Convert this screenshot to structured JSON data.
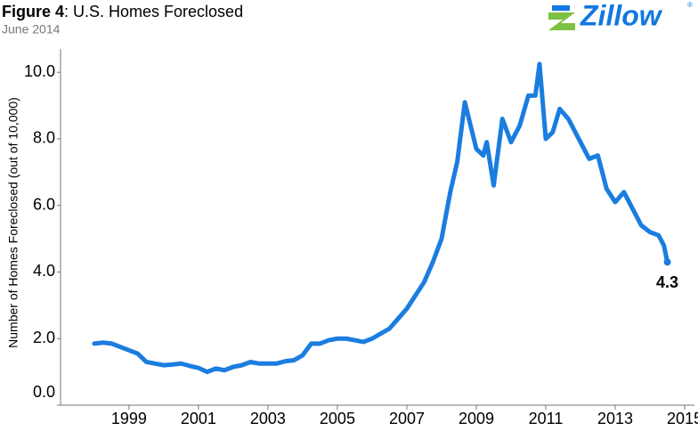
{
  "chart_data": {
    "type": "line",
    "title_bold": "Figure 4",
    "title": ": U.S. Homes Foreclosed",
    "subtitle": "June 2014",
    "logo": "Zillow",
    "logo_mark": "®",
    "y_label": "Number of Homes Foreclosed (out of 10,000)",
    "x": [
      1998.0,
      1998.25,
      1998.5,
      1998.75,
      1999.0,
      1999.25,
      1999.5,
      1999.75,
      2000.0,
      2000.25,
      2000.5,
      2000.75,
      2001.0,
      2001.25,
      2001.5,
      2001.75,
      2002.0,
      2002.25,
      2002.5,
      2002.75,
      2003.0,
      2003.25,
      2003.5,
      2003.75,
      2004.0,
      2004.25,
      2004.5,
      2004.75,
      2005.0,
      2005.25,
      2005.5,
      2005.75,
      2006.0,
      2006.25,
      2006.5,
      2006.75,
      2007.0,
      2007.25,
      2007.5,
      2007.75,
      2008.0,
      2008.25,
      2008.45,
      2008.67,
      2009.0,
      2009.2,
      2009.3,
      2009.5,
      2009.75,
      2010.0,
      2010.25,
      2010.5,
      2010.7,
      2010.82,
      2011.0,
      2011.2,
      2011.4,
      2011.65,
      2012.0,
      2012.25,
      2012.5,
      2012.75,
      2013.0,
      2013.25,
      2013.5,
      2013.75,
      2014.0,
      2014.25,
      2014.4,
      2014.5
    ],
    "series": [
      {
        "name": "Homes Foreclosed",
        "color": "#1a7de0",
        "values": [
          1.85,
          1.88,
          1.85,
          1.75,
          1.65,
          1.55,
          1.3,
          1.25,
          1.2,
          1.22,
          1.25,
          1.18,
          1.12,
          1.0,
          1.1,
          1.05,
          1.15,
          1.2,
          1.3,
          1.25,
          1.25,
          1.25,
          1.32,
          1.35,
          1.5,
          1.85,
          1.85,
          1.95,
          2.0,
          2.0,
          1.95,
          1.9,
          2.0,
          2.15,
          2.3,
          2.6,
          2.9,
          3.3,
          3.7,
          4.3,
          5.0,
          6.4,
          7.3,
          9.1,
          7.7,
          7.5,
          7.9,
          6.6,
          8.6,
          7.9,
          8.4,
          9.3,
          9.3,
          10.25,
          8.0,
          8.2,
          8.9,
          8.6,
          7.9,
          7.4,
          7.5,
          6.5,
          6.1,
          6.4,
          5.9,
          5.4,
          5.2,
          5.1,
          4.8,
          4.3
        ]
      }
    ],
    "xlim": [
      1997.03,
      2015.28
    ],
    "xticks": [
      1999,
      2001,
      2003,
      2005,
      2007,
      2009,
      2011,
      2013,
      2015
    ],
    "ylim": [
      0,
      10.7
    ],
    "yticks": [
      {
        "value": 0,
        "label": "0.0"
      },
      {
        "value": 2,
        "label": "2.0"
      },
      {
        "value": 4,
        "label": "4.0"
      },
      {
        "value": 6,
        "label": "6.0"
      },
      {
        "value": 8,
        "label": "8.0"
      },
      {
        "value": 10,
        "label": "10.0"
      }
    ],
    "grid": false
  }
}
